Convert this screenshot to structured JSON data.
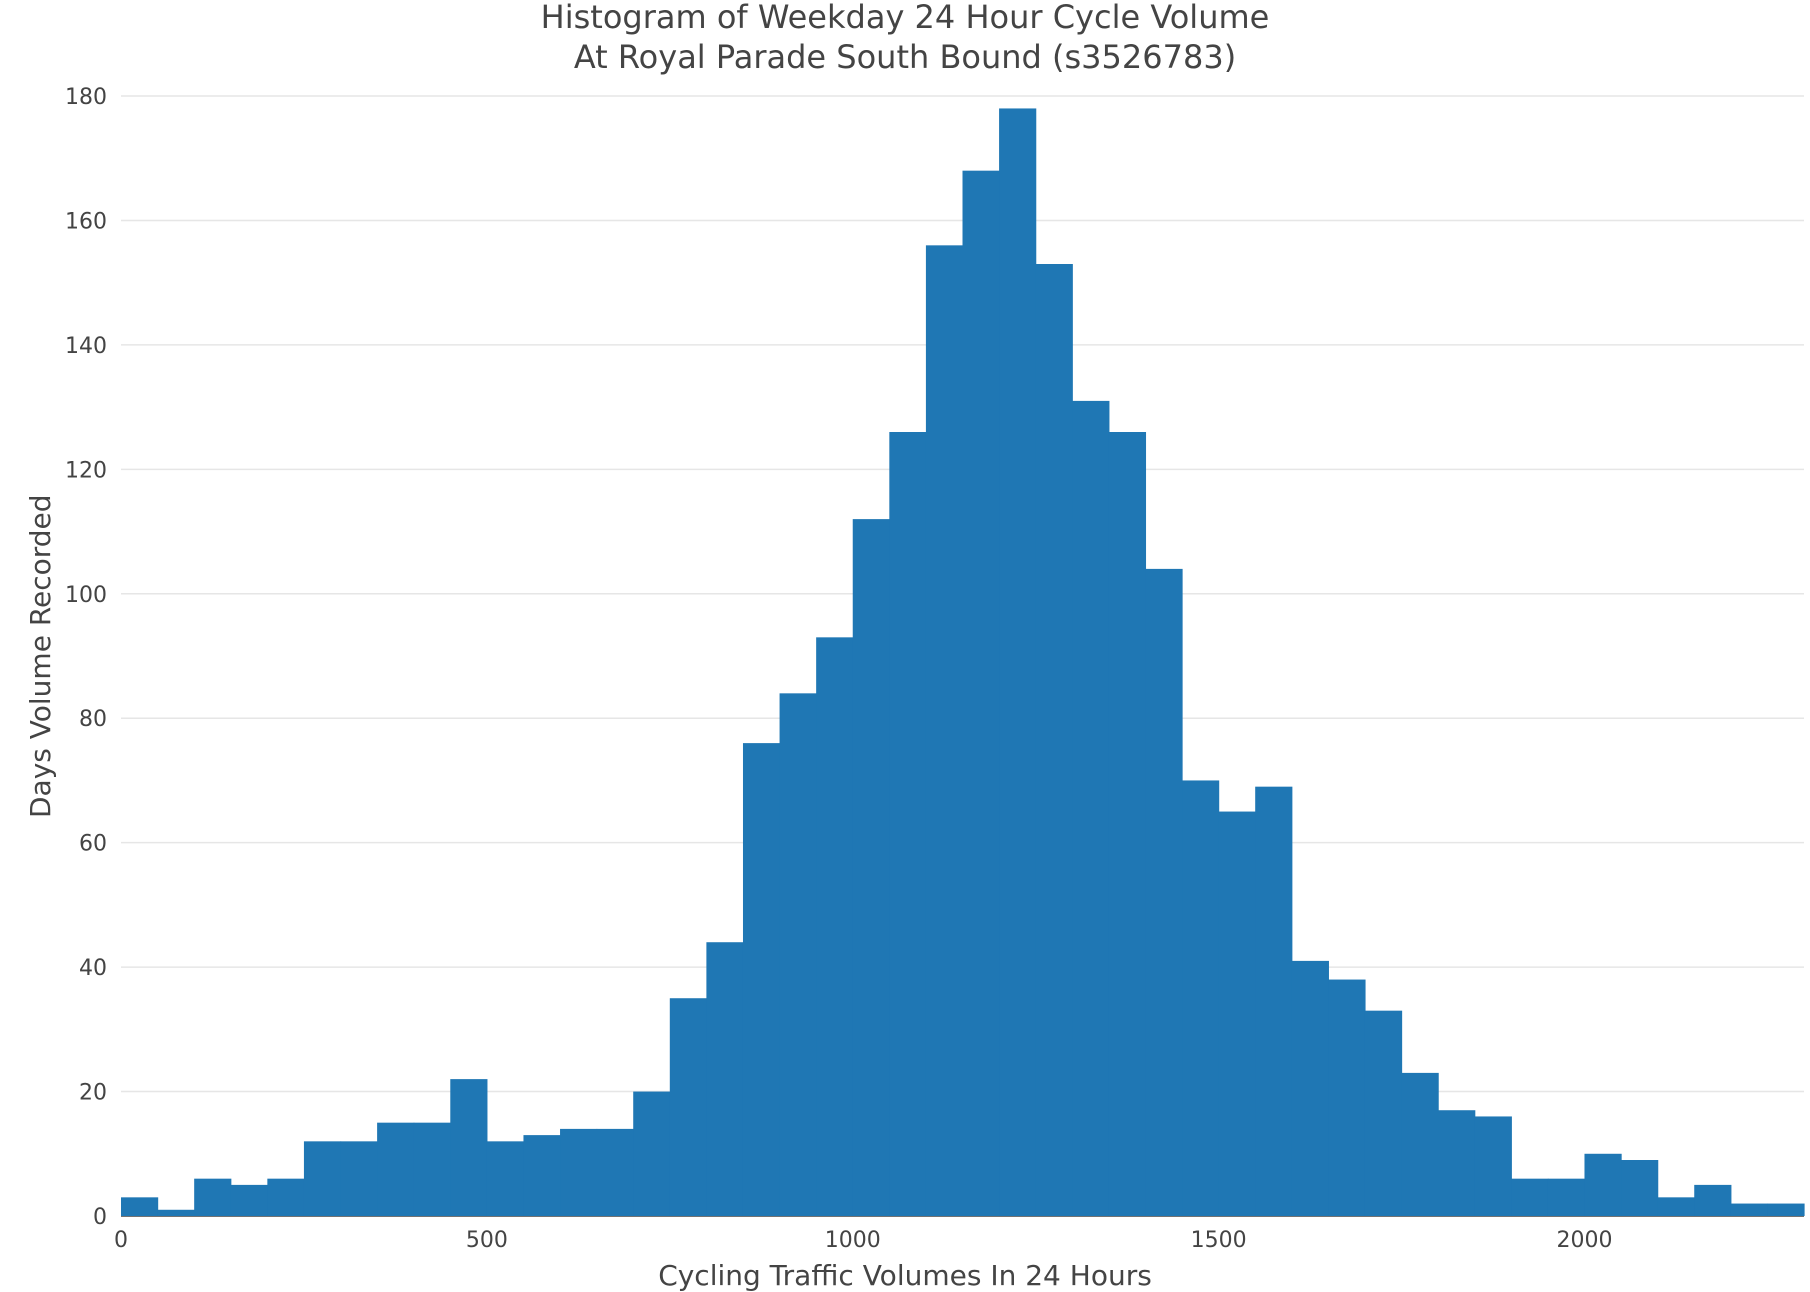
{
  "chart_data": {
    "type": "bar",
    "title_lines": [
      "Histogram of Weekday 24 Hour Cycle Volume",
      "At Royal Parade South Bound (s3526783)"
    ],
    "xlabel": "Cycling Traffic Volumes In 24 Hours",
    "ylabel": "Days Volume Recorded",
    "bin_width": 50,
    "bin_starts": [
      0,
      50,
      100,
      150,
      200,
      250,
      300,
      350,
      400,
      450,
      500,
      550,
      600,
      650,
      700,
      750,
      800,
      850,
      900,
      950,
      1000,
      1050,
      1100,
      1150,
      1200,
      1250,
      1300,
      1350,
      1400,
      1450,
      1500,
      1550,
      1600,
      1650,
      1700,
      1750,
      1800,
      1850,
      1900,
      1950,
      2000,
      2050,
      2100,
      2150,
      2200,
      2250
    ],
    "values": [
      3,
      1,
      6,
      5,
      6,
      12,
      12,
      15,
      15,
      22,
      12,
      13,
      14,
      14,
      20,
      35,
      44,
      76,
      84,
      93,
      112,
      126,
      156,
      168,
      178,
      153,
      131,
      126,
      104,
      70,
      65,
      69,
      41,
      38,
      33,
      23,
      17,
      16,
      6,
      6,
      10,
      9,
      3,
      5,
      2,
      2
    ],
    "xlim": [
      0,
      2300
    ],
    "ylim": [
      0,
      180
    ],
    "x_ticks": [
      0,
      500,
      1000,
      1500,
      2000
    ],
    "y_ticks": [
      0,
      20,
      40,
      60,
      80,
      100,
      120,
      140,
      160,
      180
    ],
    "bar_color": "#1f77b4",
    "grid": true,
    "legend": "none"
  }
}
